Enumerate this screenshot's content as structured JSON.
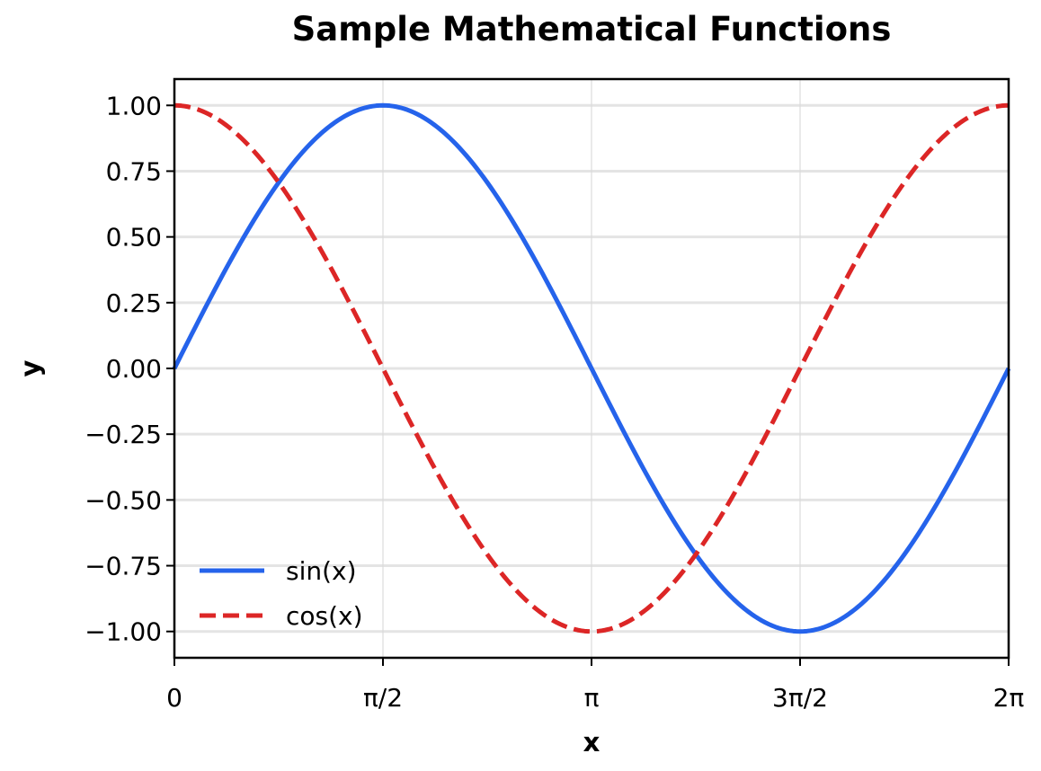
{
  "chart_data": {
    "type": "line",
    "title": "Sample Mathematical Functions",
    "xlabel": "x",
    "ylabel": "y",
    "xlim": [
      0,
      6.283185307179586
    ],
    "ylim": [
      -1.1,
      1.1
    ],
    "x_ticks": [
      {
        "value": 0,
        "label": "0"
      },
      {
        "value": 1.5707963267948966,
        "label": "π/2"
      },
      {
        "value": 3.141592653589793,
        "label": "π"
      },
      {
        "value": 4.71238898038469,
        "label": "3π/2"
      },
      {
        "value": 6.283185307179586,
        "label": "2π"
      }
    ],
    "y_ticks": [
      {
        "value": 1.0,
        "label": "1.00"
      },
      {
        "value": 0.75,
        "label": "0.75"
      },
      {
        "value": 0.5,
        "label": "0.50"
      },
      {
        "value": 0.25,
        "label": "0.25"
      },
      {
        "value": 0.0,
        "label": "0.00"
      },
      {
        "value": -0.25,
        "label": "−0.25"
      },
      {
        "value": -0.5,
        "label": "−0.50"
      },
      {
        "value": -0.75,
        "label": "−0.75"
      },
      {
        "value": -1.0,
        "label": "−1.00"
      }
    ],
    "grid": true,
    "legend_position": "lower-left",
    "x": [
      0,
      0.392699,
      0.785398,
      1.178097,
      1.570796,
      1.963495,
      2.356194,
      2.748894,
      3.141593,
      3.534292,
      3.926991,
      4.31969,
      4.712389,
      5.105088,
      5.497787,
      5.890486,
      6.283185
    ],
    "series": [
      {
        "name": "sin(x)",
        "function": "sin",
        "color": "#2563eb",
        "linestyle": "solid",
        "values": [
          0.0,
          0.3827,
          0.7071,
          0.9239,
          1.0,
          0.9239,
          0.7071,
          0.3827,
          0.0,
          -0.3827,
          -0.7071,
          -0.9239,
          -1.0,
          -0.9239,
          -0.7071,
          -0.3827,
          0.0
        ]
      },
      {
        "name": "cos(x)",
        "function": "cos",
        "color": "#dc2626",
        "linestyle": "dashed",
        "values": [
          1.0,
          0.9239,
          0.7071,
          0.3827,
          0.0,
          -0.3827,
          -0.7071,
          -0.9239,
          -1.0,
          -0.9239,
          -0.7071,
          -0.3827,
          0.0,
          0.3827,
          0.7071,
          0.9239,
          1.0
        ]
      }
    ]
  }
}
